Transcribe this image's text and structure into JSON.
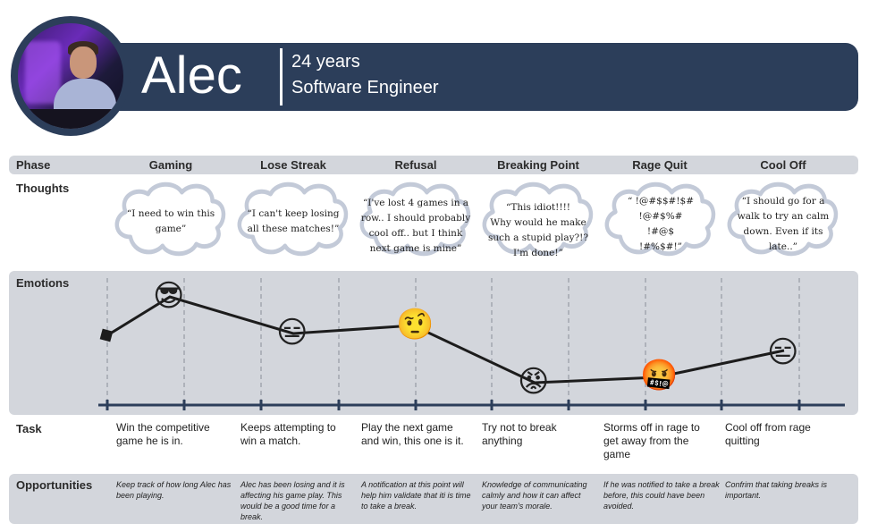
{
  "persona": {
    "name": "Alec",
    "age": "24 years",
    "occupation": "Software Engineer"
  },
  "rows": {
    "phase": "Phase",
    "thoughts": "Thoughts",
    "emotions": "Emotions",
    "task": "Task",
    "opportunities": "Opportunities"
  },
  "phases": [
    "Gaming",
    "Lose Streak",
    "Refusal",
    "Breaking Point",
    "Rage Quit",
    "Cool Off"
  ],
  "thoughts": [
    [
      "“I need to win this",
      "game”"
    ],
    [
      "“I can't keep losing",
      "all these matches!”"
    ],
    [
      "“I've lost 4 games in a",
      "row.. I should probably",
      "cool off.. but I think",
      "next game is mine”"
    ],
    [
      "“This idiot!!!!",
      "Why would he make",
      "such a stupid play?!?",
      "I'm done!”"
    ],
    [
      "“ !@#$$#!$#",
      "!@#$%#",
      "!#@$",
      "!#%$#!”"
    ],
    [
      "“I should go for a",
      "walk to try an calm",
      "down. Even if its",
      "late..”"
    ]
  ],
  "emotions": [
    {
      "emoji": "😎",
      "icon": "cool-sunglasses-face"
    },
    {
      "emoji": "😑",
      "icon": "expressionless-face"
    },
    {
      "emoji": "🤨",
      "icon": "raised-eyebrow-face"
    },
    {
      "emoji": "😡",
      "icon": "pouting-angry-face"
    },
    {
      "emoji": "🤬",
      "icon": "cursing-face"
    },
    {
      "emoji": "😑",
      "icon": "expressionless-face"
    }
  ],
  "tasks": [
    "Win the competitive game he is in.",
    "Keeps attempting to win a match.",
    "Play the next game and win, this one is it.",
    "Try not to break anything",
    "Storms off in rage to get away from the game",
    "Cool off from rage quitting"
  ],
  "opportunities": [
    "Keep track of how long Alec has been playing.",
    "Alec has been losing and it is affecting his game play. This would be a good time for a break.",
    "A notification at this point will help him validate that iti is time to take a break.",
    "Knowledge of communicating calmly and how it can affect your team's morale.",
    "If he was notified to take a break before, this could have been avoided.",
    "Confrim that taking breaks is important."
  ],
  "colors": {
    "header": "#2c3e5a",
    "band": "#d3d6dc",
    "cloud_outline": "#c3cad8",
    "line": "#1c1c1c",
    "axis": "#2c3e5a"
  }
}
